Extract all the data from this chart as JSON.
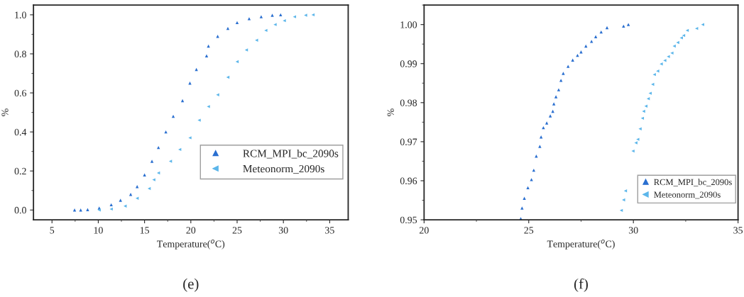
{
  "chart_data": [
    {
      "type": "scatter",
      "xlabel": "Temperature($^{o}$C)",
      "ylabel": "%",
      "xlim": [
        3,
        37
      ],
      "ylim": [
        -0.05,
        1.05
      ],
      "xticks": [
        5,
        10,
        15,
        20,
        25,
        30,
        35
      ],
      "yticks": [
        {
          "value": 0,
          "label": "0.0"
        },
        {
          "value": 0.2,
          "label": "0.2"
        },
        {
          "value": 0.4,
          "label": "0.4"
        },
        {
          "value": 0.6,
          "label": "0.6"
        },
        {
          "value": 0.8,
          "label": "0.8"
        },
        {
          "value": 1,
          "label": "1.0"
        }
      ],
      "legend": "lower right",
      "marker": "triangle",
      "annotations": [
        "(e)"
      ],
      "series": [
        {
          "name": "RCM_MPI_bc_2090s",
          "color": "#2a6fd0",
          "x": [
            7.44,
            8.1,
            8.85,
            10.1,
            11.4,
            12.4,
            13.5,
            14.2,
            15.0,
            15.8,
            16.5,
            17.3,
            18.1,
            19.1,
            19.9,
            20.6,
            21.7,
            21.9,
            22.9,
            24.0,
            25.0,
            26.3,
            27.6,
            28.8,
            29.7
          ],
          "values": [
            0,
            0,
            0.002,
            0.01,
            0.027,
            0.05,
            0.08,
            0.12,
            0.18,
            0.25,
            0.32,
            0.4,
            0.48,
            0.56,
            0.65,
            0.72,
            0.79,
            0.84,
            0.89,
            0.93,
            0.96,
            0.98,
            0.99,
            0.998,
            1.0
          ]
        },
        {
          "name": "Meteonorm_2090s",
          "color": "#5cb6ea",
          "x": [
            10.1,
            11.4,
            12.9,
            14.2,
            15.5,
            16.0,
            16.5,
            17.8,
            18.8,
            19.9,
            20.9,
            21.9,
            22.9,
            24.0,
            25.0,
            26.0,
            27.1,
            28.1,
            29.1,
            30.1,
            31.2,
            32.4,
            33.2
          ],
          "values": [
            0,
            0.005,
            0.02,
            0.06,
            0.11,
            0.155,
            0.19,
            0.25,
            0.31,
            0.37,
            0.46,
            0.53,
            0.59,
            0.68,
            0.76,
            0.82,
            0.87,
            0.92,
            0.95,
            0.97,
            0.99,
            0.998,
            1.0
          ]
        }
      ]
    },
    {
      "type": "scatter",
      "xlabel": "Temperature($^{o}$C)",
      "ylabel": "%",
      "xlim": [
        20,
        35
      ],
      "ylim": [
        0.95,
        1.005
      ],
      "xticks": [
        20,
        25,
        30,
        35
      ],
      "yticks": [
        {
          "value": 0.95,
          "label": "0.95"
        },
        {
          "value": 0.96,
          "label": "0.96"
        },
        {
          "value": 0.97,
          "label": "0.97"
        },
        {
          "value": 0.98,
          "label": "0.98"
        },
        {
          "value": 0.99,
          "label": "0.99"
        },
        {
          "value": 1.0,
          "label": "1.00"
        }
      ],
      "legend": "lower right",
      "marker": "triangle",
      "annotations": [
        "(f)"
      ],
      "series": [
        {
          "name": "RCM_MPI_bc_2090s",
          "color": "#2a6fd0",
          "x": [
            24.62,
            24.68,
            24.79,
            24.96,
            25.13,
            25.24,
            25.36,
            25.53,
            25.59,
            25.7,
            25.86,
            26.03,
            26.15,
            26.2,
            26.3,
            26.43,
            26.54,
            26.65,
            26.88,
            27.1,
            27.33,
            27.5,
            27.73,
            28.0,
            28.2,
            28.46,
            28.74,
            29.53,
            29.76
          ],
          "values": [
            0.9503,
            0.953,
            0.9555,
            0.9582,
            0.9603,
            0.9627,
            0.9663,
            0.9688,
            0.9712,
            0.9736,
            0.9748,
            0.9766,
            0.9778,
            0.9797,
            0.9815,
            0.9833,
            0.9857,
            0.9875,
            0.9893,
            0.9909,
            0.9921,
            0.993,
            0.9945,
            0.9957,
            0.9969,
            0.9981,
            0.9992,
            0.9996,
            1.0
          ]
        },
        {
          "name": "Meteonorm_2090s",
          "color": "#5cb6ea",
          "x": [
            29.42,
            29.53,
            29.62,
            29.98,
            30.12,
            30.21,
            30.32,
            30.43,
            30.49,
            30.6,
            30.71,
            30.8,
            30.92,
            31.0,
            31.16,
            31.33,
            31.5,
            31.67,
            31.84,
            31.95,
            32.12,
            32.29,
            32.4,
            32.57,
            33.02,
            33.31
          ],
          "values": [
            0.9524,
            0.9551,
            0.9574,
            0.9676,
            0.9697,
            0.9706,
            0.9733,
            0.976,
            0.9778,
            0.9791,
            0.981,
            0.9824,
            0.9847,
            0.9872,
            0.9881,
            0.9899,
            0.9908,
            0.9918,
            0.9927,
            0.9945,
            0.9954,
            0.9966,
            0.9972,
            0.9985,
            0.999,
            1.0
          ]
        }
      ]
    }
  ]
}
